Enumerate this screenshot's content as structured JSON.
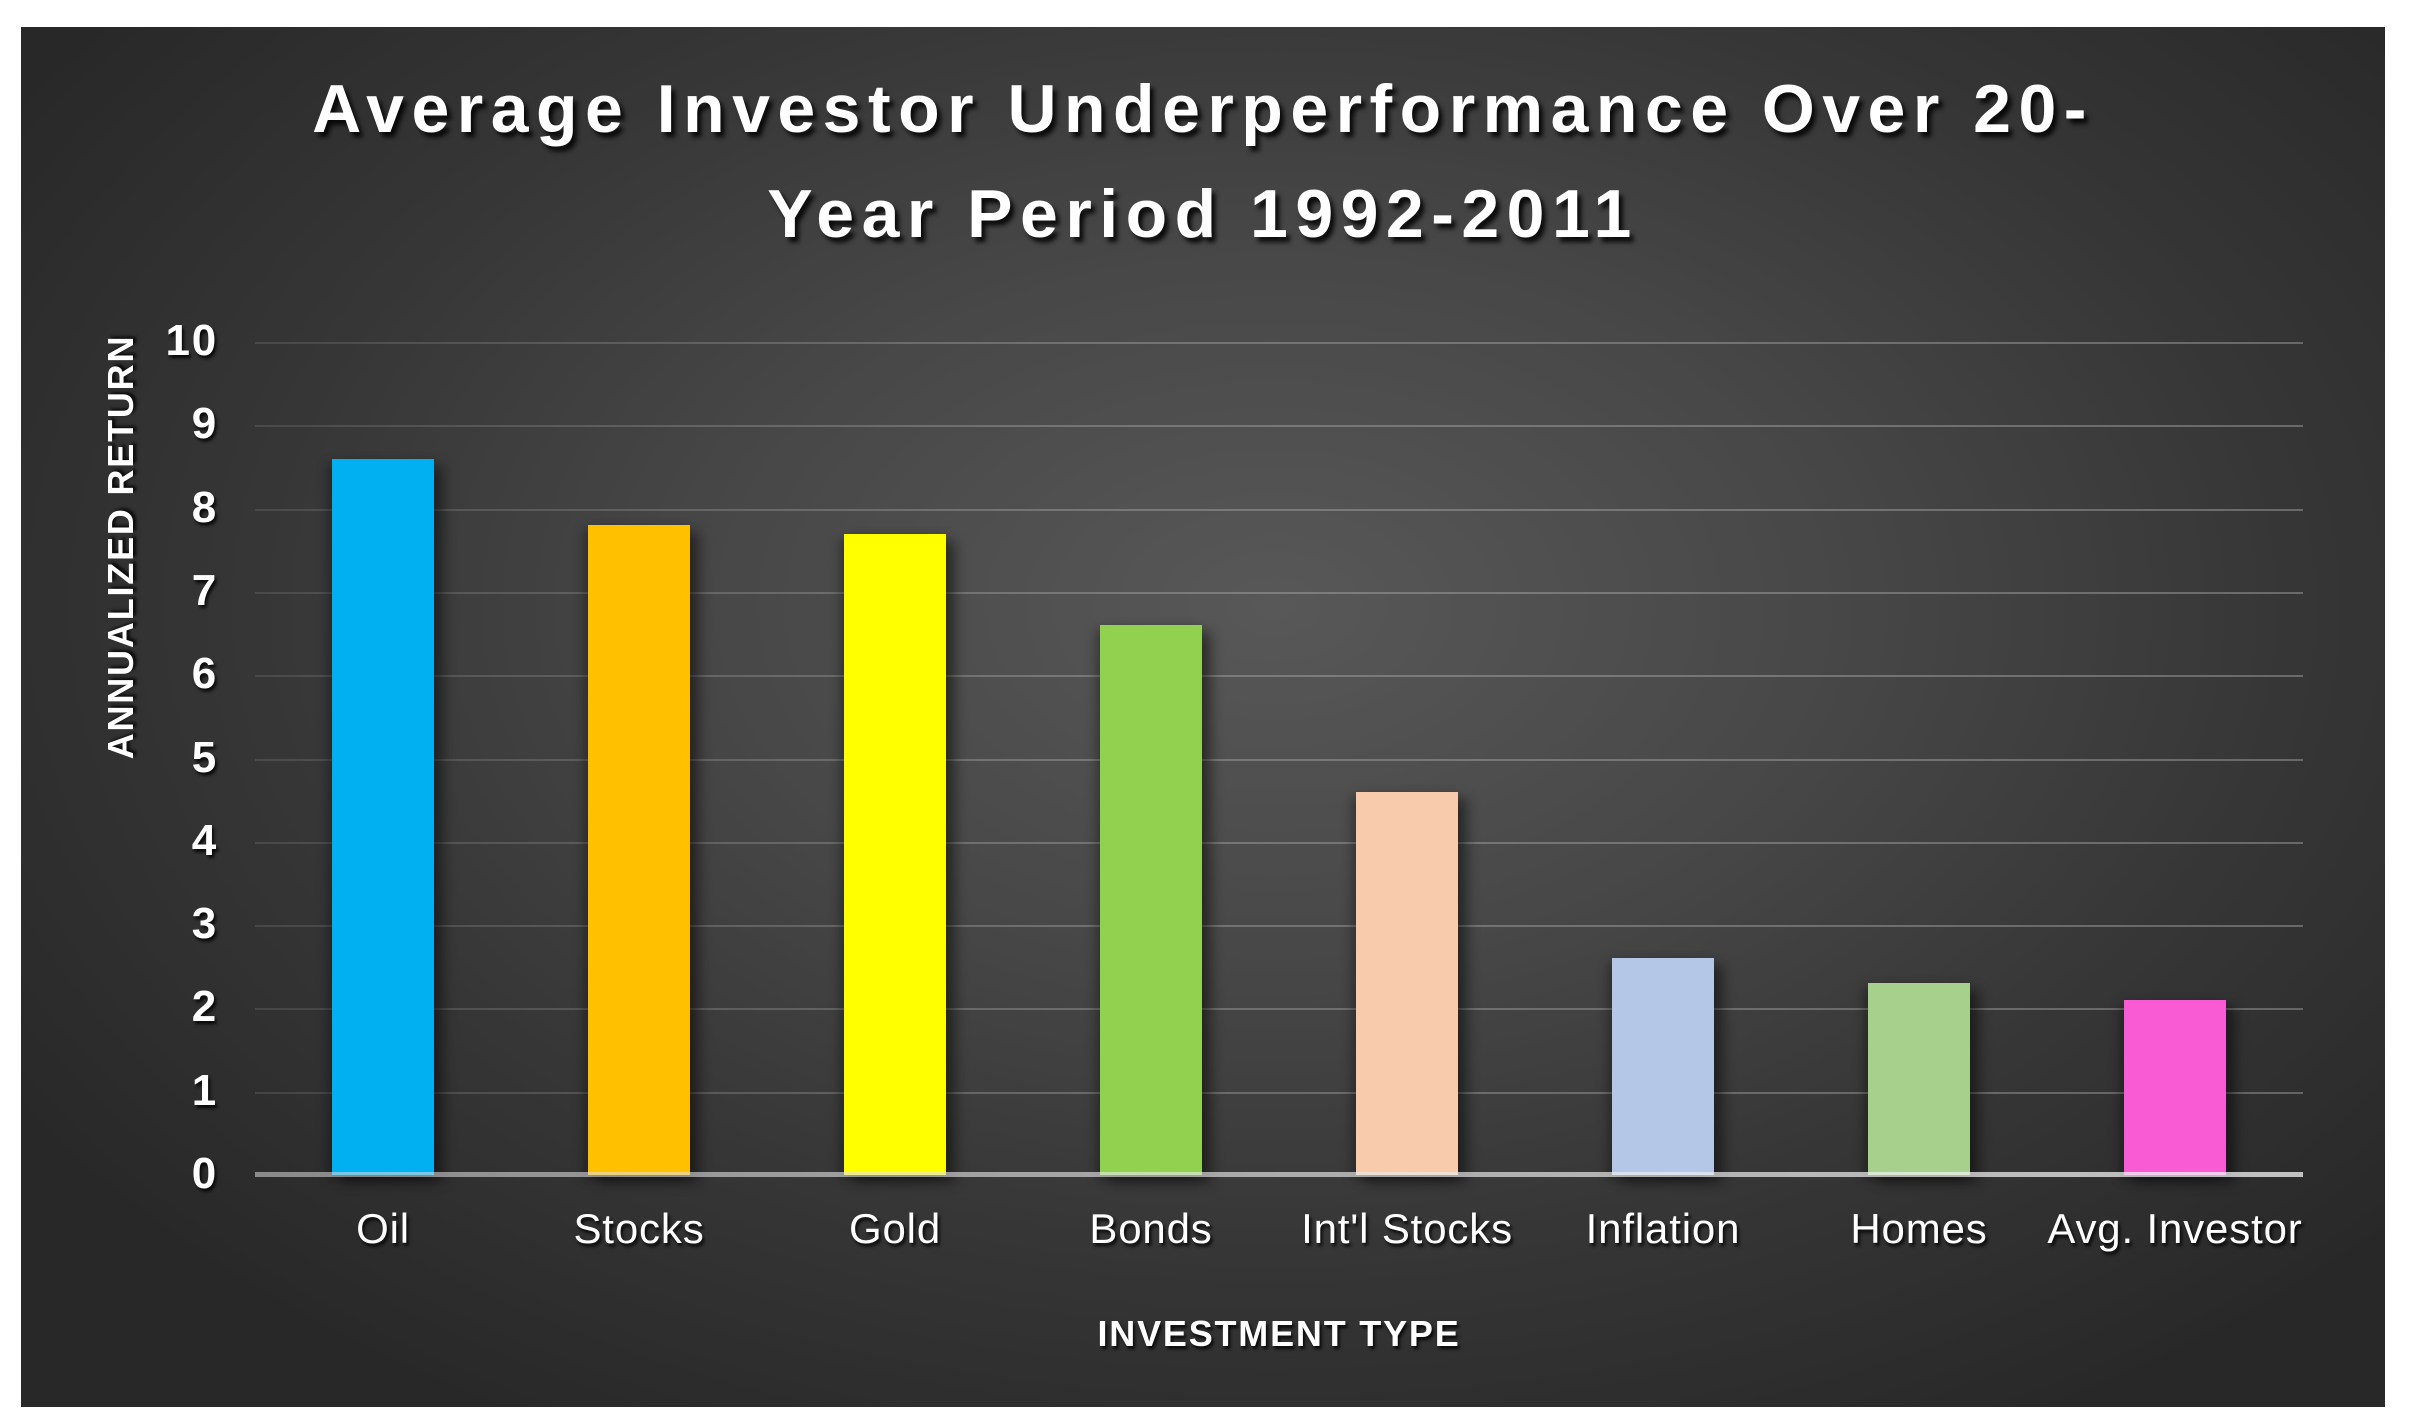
{
  "window": {
    "kind": "presentation-slide-bar-chart"
  },
  "chart_data": {
    "type": "bar",
    "title": "Average Investor Underperformance Over 20-Year Period 1992-2011",
    "title_lines": [
      "Average Investor Underperformance Over 20-",
      "Year Period 1992-2011"
    ],
    "xlabel": "INVESTMENT TYPE",
    "ylabel": "ANNUALIZED RETURN",
    "categories": [
      "Oil",
      "Stocks",
      "Gold",
      "Bonds",
      "Int'l Stocks",
      "Inflation",
      "Homes",
      "Avg. Investor"
    ],
    "values": [
      8.6,
      7.8,
      7.7,
      6.6,
      4.6,
      2.6,
      2.3,
      2.1
    ],
    "bar_colors": [
      "#00B0F0",
      "#FFC000",
      "#FFFF00",
      "#92D050",
      "#F8CBAD",
      "#B4C7E7",
      "#A8D08D",
      "#F85BD4"
    ],
    "ylim": [
      0,
      10
    ],
    "yticks": [
      0,
      1,
      2,
      3,
      4,
      5,
      6,
      7,
      8,
      9,
      10
    ],
    "grid": true,
    "legend": false
  },
  "style": {
    "page_background": "#FFFFFF",
    "panel_background_center": "#585858",
    "panel_background_edge": "#282828",
    "text_color": "#FFFFFF",
    "gridline_color": "#FFFFFF",
    "axis_line_color": "#E8E8E8"
  }
}
